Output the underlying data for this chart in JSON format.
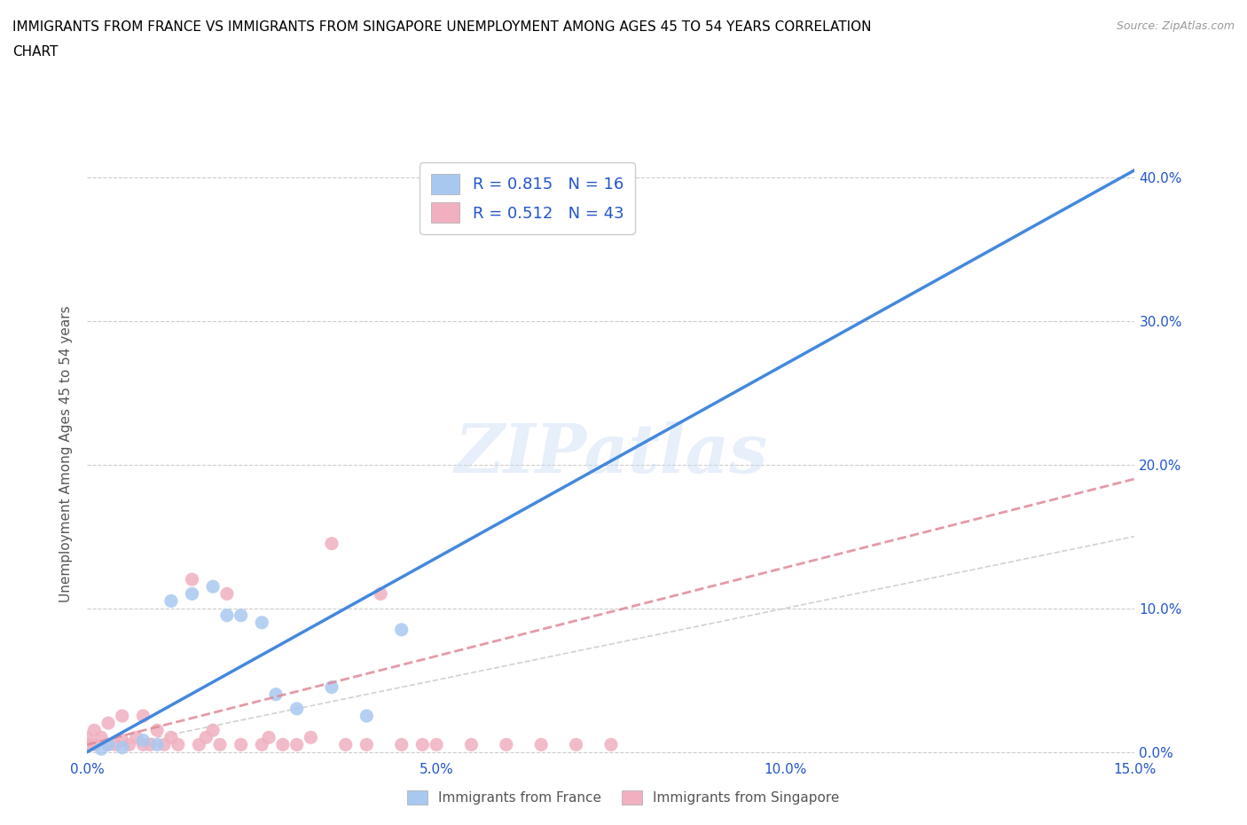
{
  "title_line1": "IMMIGRANTS FROM FRANCE VS IMMIGRANTS FROM SINGAPORE UNEMPLOYMENT AMONG AGES 45 TO 54 YEARS CORRELATION",
  "title_line2": "CHART",
  "source": "Source: ZipAtlas.com",
  "ylabel": "Unemployment Among Ages 45 to 54 years",
  "xlim": [
    0.0,
    0.15
  ],
  "ylim": [
    -0.005,
    0.42
  ],
  "xticks": [
    0.0,
    0.05,
    0.1,
    0.15
  ],
  "xtick_labels": [
    "0.0%",
    "5.0%",
    "10.0%",
    "15.0%"
  ],
  "yticks": [
    0.0,
    0.1,
    0.2,
    0.3,
    0.4
  ],
  "ytick_labels": [
    "0.0%",
    "10.0%",
    "20.0%",
    "30.0%",
    "40.0%"
  ],
  "france_color": "#a8c8f0",
  "singapore_color": "#f0b0c0",
  "france_line_color": "#4488dd",
  "singapore_line_color": "#e08898",
  "ref_line_color": "#cccccc",
  "france_R": 0.815,
  "france_N": 16,
  "singapore_R": 0.512,
  "singapore_N": 43,
  "watermark": "ZIPatlas",
  "france_points_x": [
    0.002,
    0.003,
    0.005,
    0.008,
    0.01,
    0.012,
    0.015,
    0.018,
    0.02,
    0.022,
    0.025,
    0.027,
    0.03,
    0.035,
    0.04,
    0.045
  ],
  "france_points_y": [
    0.002,
    0.005,
    0.003,
    0.008,
    0.005,
    0.105,
    0.11,
    0.115,
    0.095,
    0.095,
    0.09,
    0.04,
    0.03,
    0.045,
    0.025,
    0.085
  ],
  "singapore_points_x": [
    0.0,
    0.0,
    0.001,
    0.001,
    0.002,
    0.003,
    0.003,
    0.004,
    0.005,
    0.005,
    0.006,
    0.007,
    0.008,
    0.008,
    0.009,
    0.01,
    0.011,
    0.012,
    0.013,
    0.015,
    0.016,
    0.017,
    0.018,
    0.019,
    0.02,
    0.022,
    0.025,
    0.026,
    0.028,
    0.03,
    0.032,
    0.035,
    0.037,
    0.04,
    0.042,
    0.045,
    0.048,
    0.05,
    0.055,
    0.06,
    0.065,
    0.07,
    0.075
  ],
  "singapore_points_y": [
    0.005,
    0.01,
    0.005,
    0.015,
    0.01,
    0.005,
    0.02,
    0.005,
    0.008,
    0.025,
    0.005,
    0.01,
    0.005,
    0.025,
    0.005,
    0.015,
    0.005,
    0.01,
    0.005,
    0.12,
    0.005,
    0.01,
    0.015,
    0.005,
    0.11,
    0.005,
    0.005,
    0.01,
    0.005,
    0.005,
    0.01,
    0.145,
    0.005,
    0.005,
    0.11,
    0.005,
    0.005,
    0.005,
    0.005,
    0.005,
    0.005,
    0.005,
    0.005
  ],
  "france_line_x": [
    0.0,
    0.15
  ],
  "france_line_y": [
    0.0,
    0.405
  ],
  "singapore_line_x": [
    0.0,
    0.15
  ],
  "singapore_line_y": [
    0.005,
    0.19
  ],
  "ref_line_x": [
    0.0,
    0.15
  ],
  "ref_line_y": [
    0.0,
    0.15
  ],
  "grid_color": "#cccccc",
  "tick_color": "#2255cc",
  "axis_label_color": "#555555",
  "legend_text_color": "#2255cc"
}
